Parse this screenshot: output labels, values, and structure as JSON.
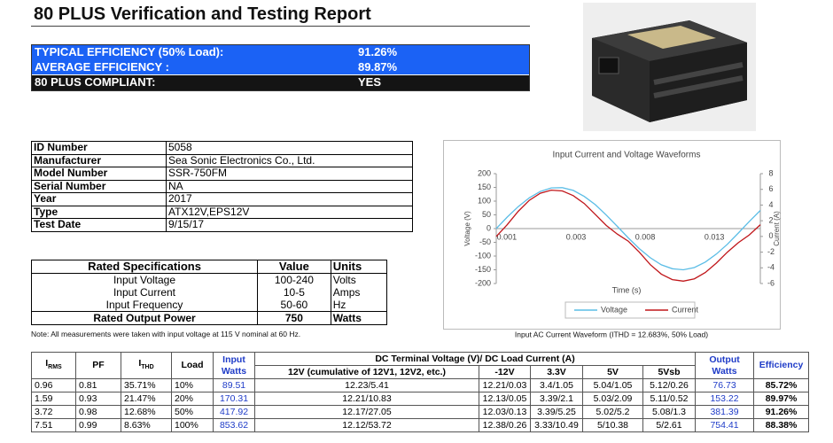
{
  "header": {
    "title": "80 PLUS Verification and Testing Report"
  },
  "summary": {
    "rows": [
      [
        "TYPICAL EFFICIENCY (50% Load):",
        "91.26%"
      ],
      [
        "AVERAGE EFFICIENCY :",
        "89.87%"
      ],
      [
        "80 PLUS COMPLIANT:",
        "YES"
      ]
    ]
  },
  "info": {
    "rows": [
      [
        "ID Number",
        "5058"
      ],
      [
        "Manufacturer",
        "Sea Sonic Electronics Co., Ltd."
      ],
      [
        "Model Number",
        "SSR-750FM"
      ],
      [
        "Serial Number",
        "NA"
      ],
      [
        "Year",
        "2017"
      ],
      [
        "Type",
        "ATX12V,EPS12V"
      ],
      [
        "Test Date",
        "9/15/17"
      ]
    ]
  },
  "rated": {
    "headers": [
      "Rated Specifications",
      "Value",
      "Units"
    ],
    "rows": [
      [
        "Input Voltage",
        "100-240",
        "Volts"
      ],
      [
        "Input Current",
        "10-5",
        "Amps"
      ],
      [
        "Input Frequency",
        "50-60",
        "Hz"
      ],
      [
        "Rated Output Power",
        "750",
        "Watts"
      ]
    ],
    "note": "Note: All measurements were taken with input voltage at 115 V nominal at 60 Hz."
  },
  "waveform": {
    "type": "line",
    "title": "Input Current and Voltage Waveforms",
    "x_label": "Time (s)",
    "y_label": "Voltage (V)",
    "y2_label": "Current (A)",
    "x_tick_labels": [
      "0.001",
      "0.003",
      "0.008",
      "0.013"
    ],
    "ylim": [
      -200,
      200
    ],
    "yticks": [
      200,
      150,
      100,
      50,
      0,
      -50,
      -100,
      -150,
      -200
    ],
    "y2lim": [
      -6,
      8
    ],
    "y2ticks": [
      8,
      6,
      4,
      2,
      0,
      -2,
      -4,
      -6
    ],
    "series": [
      {
        "name": "Voltage",
        "color": "#5bbde6",
        "values": [
          0,
          42,
          80,
          112,
          135,
          148,
          149,
          139,
          117,
          87,
          49,
          8,
          -34,
          -73,
          -106,
          -132,
          -146,
          -150,
          -142,
          -122,
          -93,
          -57,
          -16,
          26,
          66
        ]
      },
      {
        "name": "Current",
        "color": "#c0161a",
        "axis": "y2",
        "values": [
          0,
          1.5,
          3.2,
          4.6,
          5.5,
          5.9,
          5.8,
          5.2,
          4.2,
          2.8,
          1.4,
          0.3,
          -0.6,
          -2.0,
          -3.6,
          -4.8,
          -5.5,
          -5.7,
          -5.4,
          -4.6,
          -3.4,
          -2.0,
          -0.8,
          0.2,
          1.5
        ]
      }
    ],
    "caption": "Input AC Current Waveform (ITHD = 12.683%, 50% Load)"
  },
  "results": {
    "group_header": "DC Terminal Voltage (V)/ DC Load Current (A)",
    "columns": [
      {
        "main": "I",
        "sub": "RMS"
      },
      "PF",
      {
        "main": "I",
        "sub": "THD"
      },
      "Load",
      "Input Watts",
      "12V (cumulative of 12V1, 12V2, etc.)",
      "-12V",
      "3.3V",
      "5V",
      "5Vsb",
      "Output Watts",
      "Efficiency"
    ],
    "rows": [
      [
        "0.96",
        "0.81",
        "35.71%",
        "10%",
        "89.51",
        "12.23/5.41",
        "12.21/0.03",
        "3.4/1.05",
        "5.04/1.05",
        "5.12/0.26",
        "76.73",
        "85.72%"
      ],
      [
        "1.59",
        "0.93",
        "21.47%",
        "20%",
        "170.31",
        "12.21/10.83",
        "12.13/0.05",
        "3.39/2.1",
        "5.03/2.09",
        "5.11/0.52",
        "153.22",
        "89.97%"
      ],
      [
        "3.72",
        "0.98",
        "12.68%",
        "50%",
        "417.92",
        "12.17/27.05",
        "12.03/0.13",
        "3.39/5.25",
        "5.02/5.2",
        "5.08/1.3",
        "381.39",
        "91.26%"
      ],
      [
        "7.51",
        "0.99",
        "8.63%",
        "100%",
        "853.62",
        "12.12/53.72",
        "12.38/0.26",
        "3.33/10.49",
        "5/10.38",
        "5/2.61",
        "754.41",
        "88.38%"
      ]
    ]
  }
}
